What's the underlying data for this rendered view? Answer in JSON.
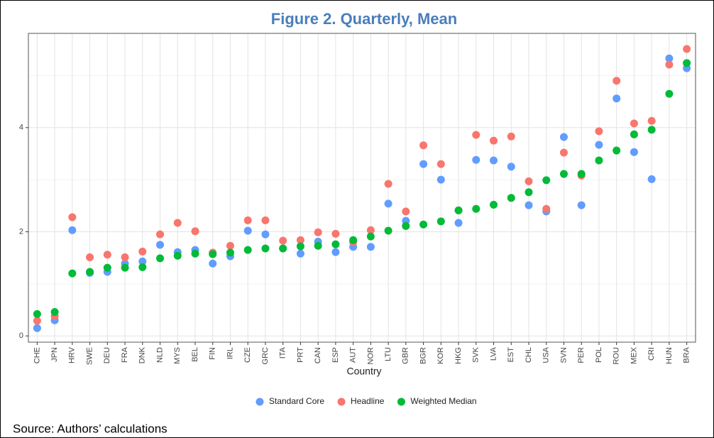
{
  "chart_data": {
    "type": "scatter",
    "title": "Figure 2. Quarterly, Mean",
    "x_label": "Country",
    "source": "Source: Authors’ calculations",
    "categories": [
      "CHE",
      "JPN",
      "HRV",
      "SWE",
      "DEU",
      "FRA",
      "DNK",
      "NLD",
      "MYS",
      "BEL",
      "FIN",
      "IRL",
      "CZE",
      "GRC",
      "ITA",
      "PRT",
      "CAN",
      "ESP",
      "AUT",
      "NOR",
      "LTU",
      "GBR",
      "BGR",
      "KOR",
      "HKG",
      "SVK",
      "LVA",
      "EST",
      "CHL",
      "USA",
      "SVN",
      "PER",
      "POL",
      "ROU",
      "MEX",
      "CRI",
      "HUN",
      "BRA"
    ],
    "series": [
      {
        "name": "Standard Core",
        "color": "#619CFF",
        "values": [
          0.15,
          0.3,
          2.03,
          1.21,
          1.23,
          1.39,
          1.43,
          1.75,
          1.61,
          1.65,
          1.39,
          1.53,
          2.02,
          1.95,
          1.68,
          1.58,
          1.81,
          1.61,
          1.71,
          1.71,
          2.54,
          2.21,
          3.3,
          3.0,
          2.17,
          3.38,
          3.37,
          3.25,
          2.51,
          2.39,
          3.82,
          2.51,
          3.67,
          4.56,
          3.53,
          3.01,
          5.33,
          5.14
        ]
      },
      {
        "name": "Headline",
        "color": "#F8766D",
        "values": [
          0.29,
          0.38,
          2.28,
          1.51,
          1.56,
          1.51,
          1.62,
          1.95,
          2.17,
          2.01,
          1.6,
          1.73,
          2.22,
          2.22,
          1.83,
          1.84,
          1.99,
          1.96,
          1.8,
          2.03,
          2.92,
          2.39,
          3.66,
          3.3,
          2.41,
          3.86,
          3.75,
          3.83,
          2.97,
          2.44,
          3.52,
          3.08,
          3.93,
          4.9,
          4.08,
          4.13,
          5.21,
          5.51
        ]
      },
      {
        "name": "Weighted Median",
        "color": "#00BA38",
        "values": [
          0.42,
          0.46,
          1.2,
          1.23,
          1.31,
          1.31,
          1.32,
          1.49,
          1.54,
          1.58,
          1.57,
          1.6,
          1.65,
          1.68,
          1.68,
          1.72,
          1.73,
          1.76,
          1.84,
          1.91,
          2.02,
          2.11,
          2.14,
          2.2,
          2.41,
          2.44,
          2.52,
          2.65,
          2.76,
          2.99,
          3.11,
          3.11,
          3.37,
          3.56,
          3.87,
          3.96,
          4.65,
          5.24
        ]
      }
    ],
    "ylim": [
      -0.12,
      5.81
    ],
    "yticks": [
      0,
      2,
      4
    ],
    "y_minor_ticks": [
      1,
      3,
      5
    ],
    "grid": true
  }
}
